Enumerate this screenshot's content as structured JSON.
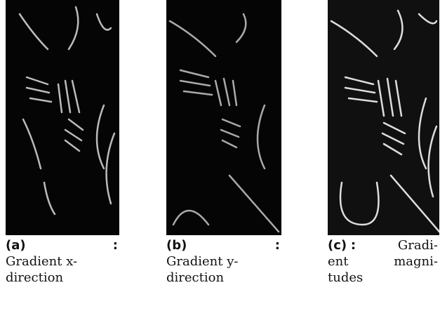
{
  "figures": [
    {
      "label": "(a)",
      "separator": ":",
      "lines": [
        "Gradient x-",
        "direction"
      ]
    },
    {
      "label": "(b)",
      "separator": ":",
      "lines": [
        "Gradient y-",
        "direction"
      ]
    },
    {
      "label": "(c)",
      "separator": ":",
      "lines": [
        "Gradi-",
        "ent magni-",
        "tudes"
      ]
    }
  ]
}
